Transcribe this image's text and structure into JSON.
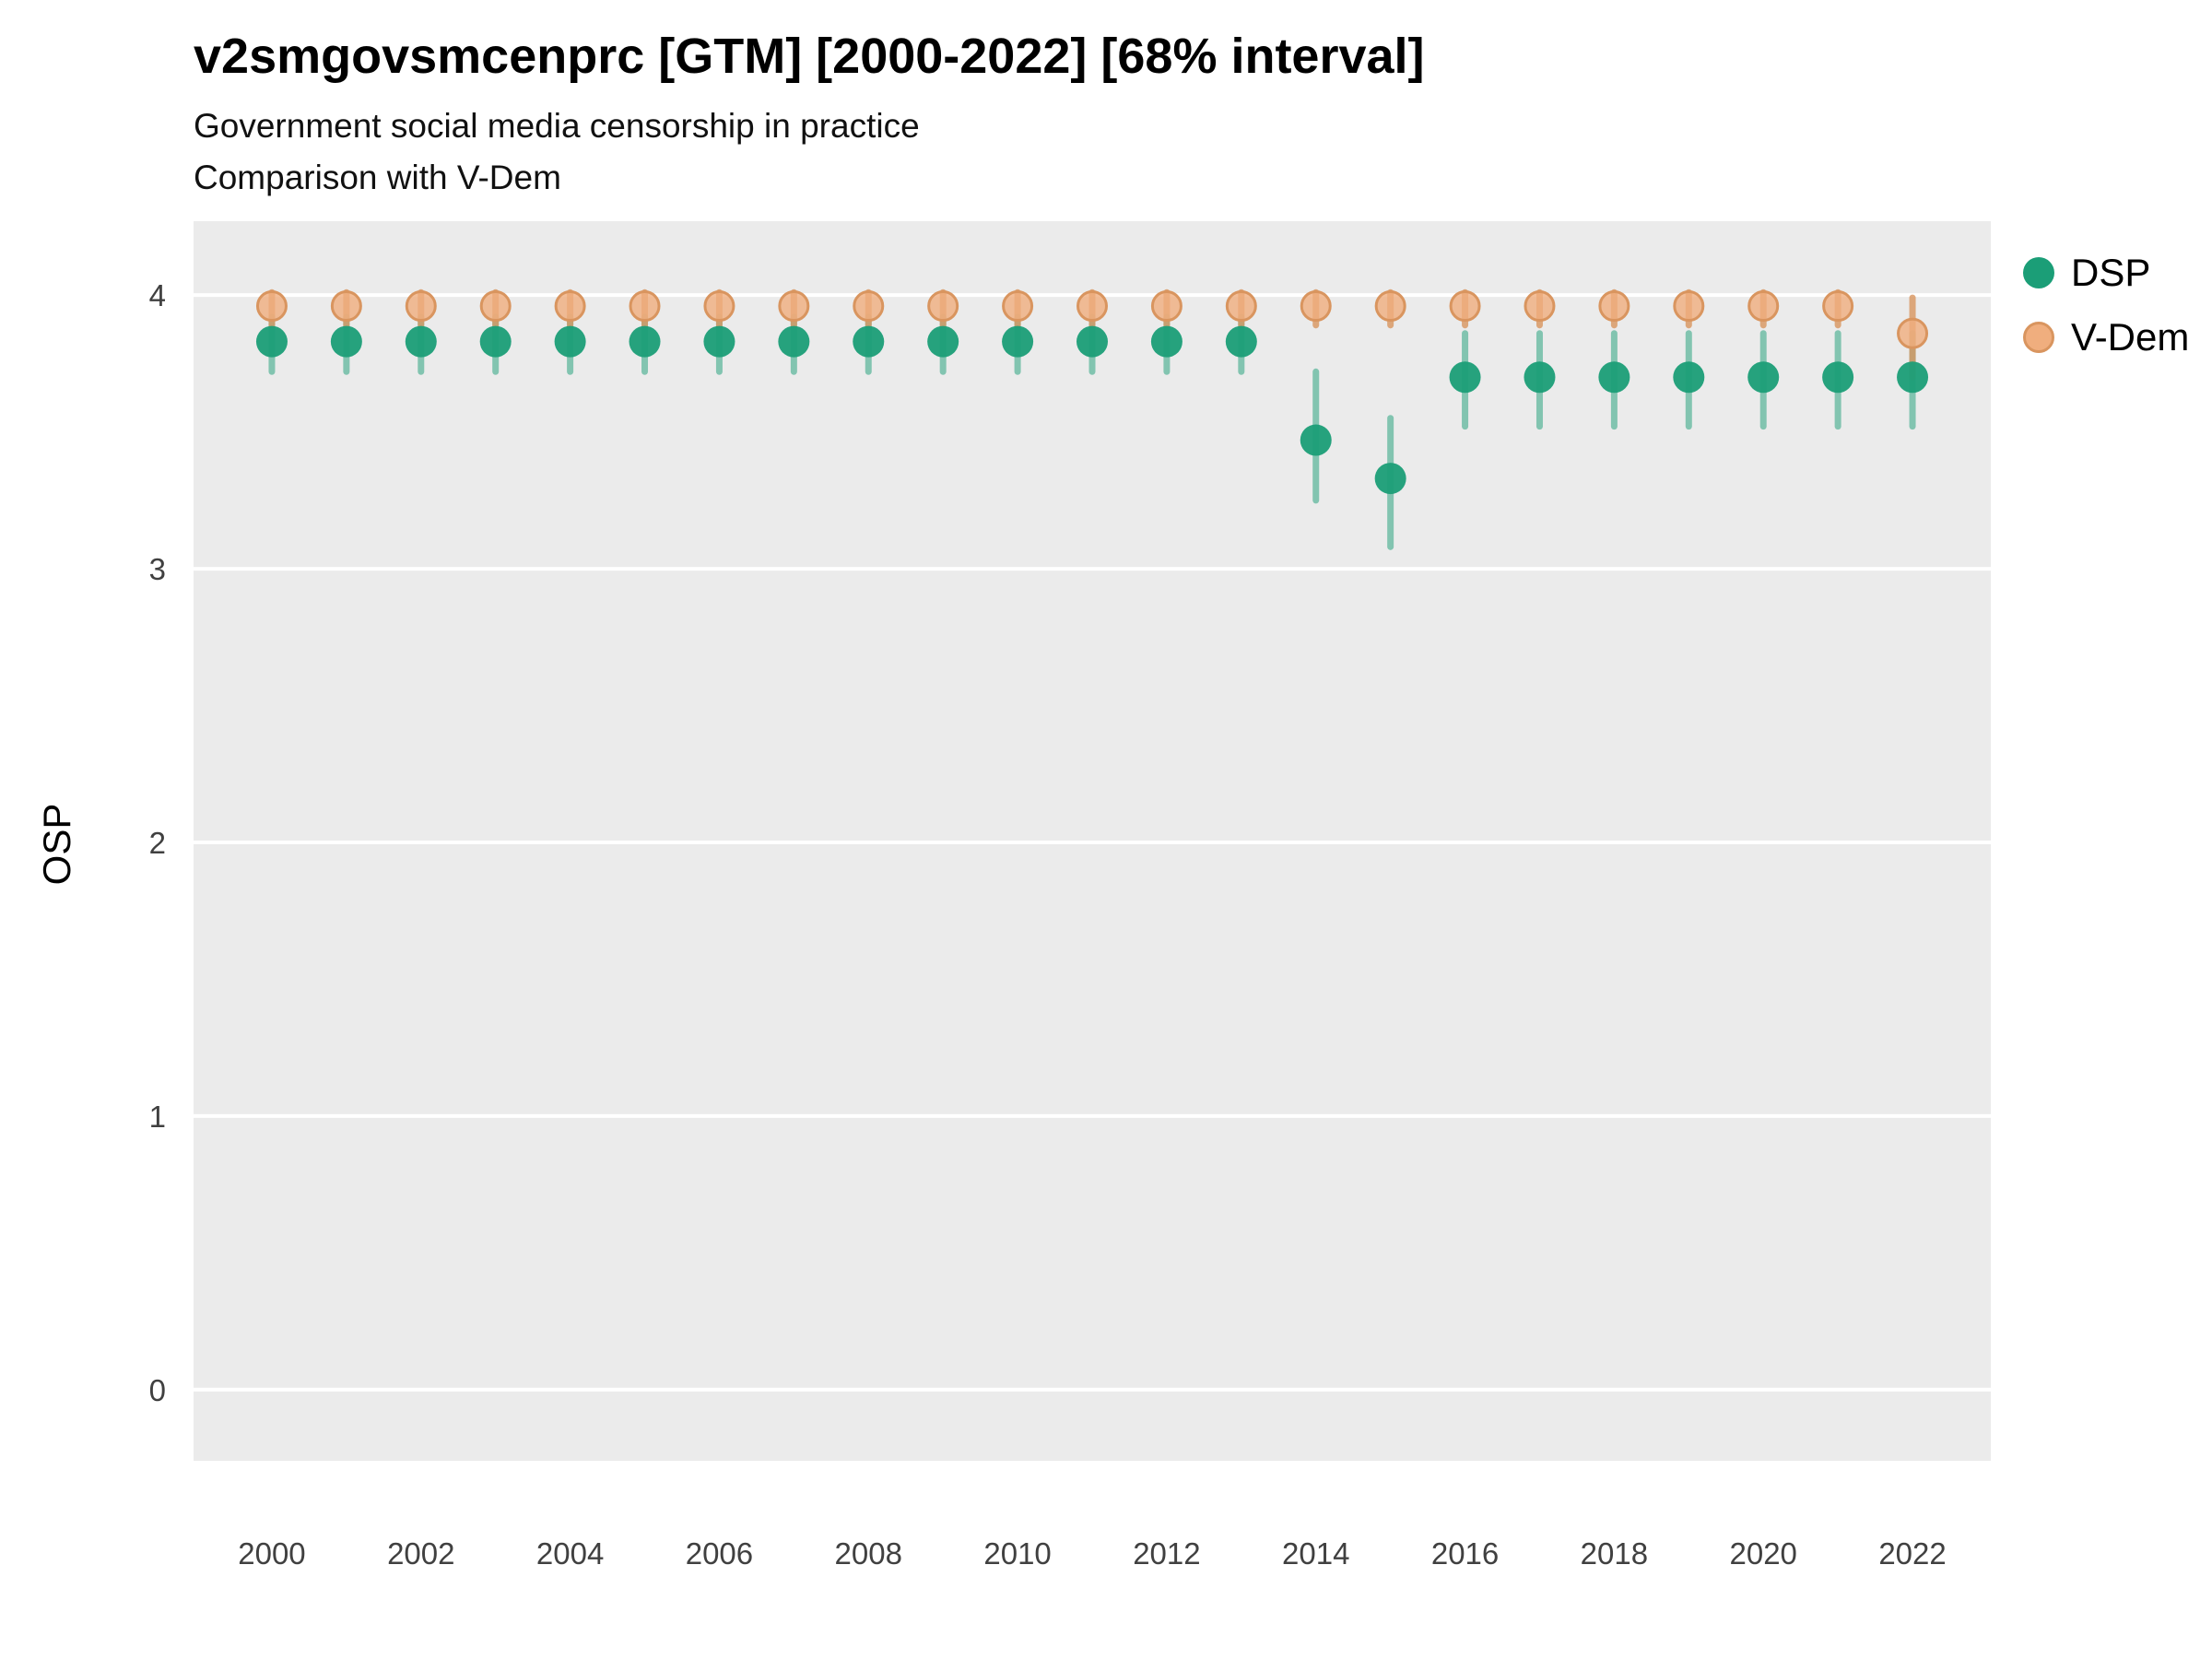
{
  "chart_data": {
    "type": "scatter",
    "title": "v2smgovsmcenprc [GTM] [2000-2022] [68% interval]",
    "subtitle": "Government social media censorship in practice",
    "subtitle2": "Comparison with V-Dem",
    "ylabel": "OSP",
    "xlabel": "",
    "xlim": [
      1998.95,
      2023.05
    ],
    "ylim": [
      -0.26,
      4.27
    ],
    "yticks": [
      0,
      1,
      2,
      3,
      4
    ],
    "xticks": [
      2000,
      2002,
      2004,
      2006,
      2008,
      2010,
      2012,
      2014,
      2016,
      2018,
      2020,
      2022
    ],
    "x": [
      2000,
      2001,
      2002,
      2003,
      2004,
      2005,
      2006,
      2007,
      2008,
      2009,
      2010,
      2011,
      2012,
      2013,
      2014,
      2015,
      2016,
      2017,
      2018,
      2019,
      2020,
      2021,
      2022
    ],
    "grid": "horizontal-major",
    "legend_position": "right",
    "panel_background": "#EBEBEB",
    "gridline_color": "#FFFFFF",
    "tick_label_color": "#404040",
    "series": [
      {
        "name": "DSP",
        "color": "#1B9E77",
        "bar_color": "#1B9E77",
        "values": [
          3.83,
          3.83,
          3.83,
          3.83,
          3.83,
          3.83,
          3.83,
          3.83,
          3.83,
          3.83,
          3.83,
          3.83,
          3.83,
          3.83,
          3.47,
          3.33,
          3.7,
          3.7,
          3.7,
          3.7,
          3.7,
          3.7,
          3.7
        ],
        "lo": [
          3.72,
          3.72,
          3.72,
          3.72,
          3.72,
          3.72,
          3.72,
          3.72,
          3.72,
          3.72,
          3.72,
          3.72,
          3.72,
          3.72,
          3.25,
          3.08,
          3.52,
          3.52,
          3.52,
          3.52,
          3.52,
          3.52,
          3.52
        ],
        "hi": [
          3.92,
          3.92,
          3.92,
          3.92,
          3.92,
          3.92,
          3.92,
          3.92,
          3.92,
          3.92,
          3.92,
          3.92,
          3.92,
          3.92,
          3.72,
          3.55,
          3.86,
          3.86,
          3.86,
          3.86,
          3.86,
          3.86,
          3.86
        ]
      },
      {
        "name": "V-Dem",
        "color": "#F0AE7E",
        "stroke": "#D9955F",
        "values": [
          3.96,
          3.96,
          3.96,
          3.96,
          3.96,
          3.96,
          3.96,
          3.96,
          3.96,
          3.96,
          3.96,
          3.96,
          3.96,
          3.96,
          3.96,
          3.96,
          3.96,
          3.96,
          3.96,
          3.96,
          3.96,
          3.96,
          3.86
        ],
        "lo": [
          3.89,
          3.89,
          3.89,
          3.89,
          3.89,
          3.89,
          3.89,
          3.89,
          3.89,
          3.89,
          3.89,
          3.89,
          3.89,
          3.89,
          3.89,
          3.89,
          3.89,
          3.89,
          3.89,
          3.89,
          3.89,
          3.89,
          3.7
        ],
        "hi": [
          4.01,
          4.01,
          4.01,
          4.01,
          4.01,
          4.01,
          4.01,
          4.01,
          4.01,
          4.01,
          4.01,
          4.01,
          4.01,
          4.01,
          4.01,
          4.01,
          4.01,
          4.01,
          4.01,
          4.01,
          4.01,
          4.01,
          3.99
        ]
      }
    ]
  }
}
